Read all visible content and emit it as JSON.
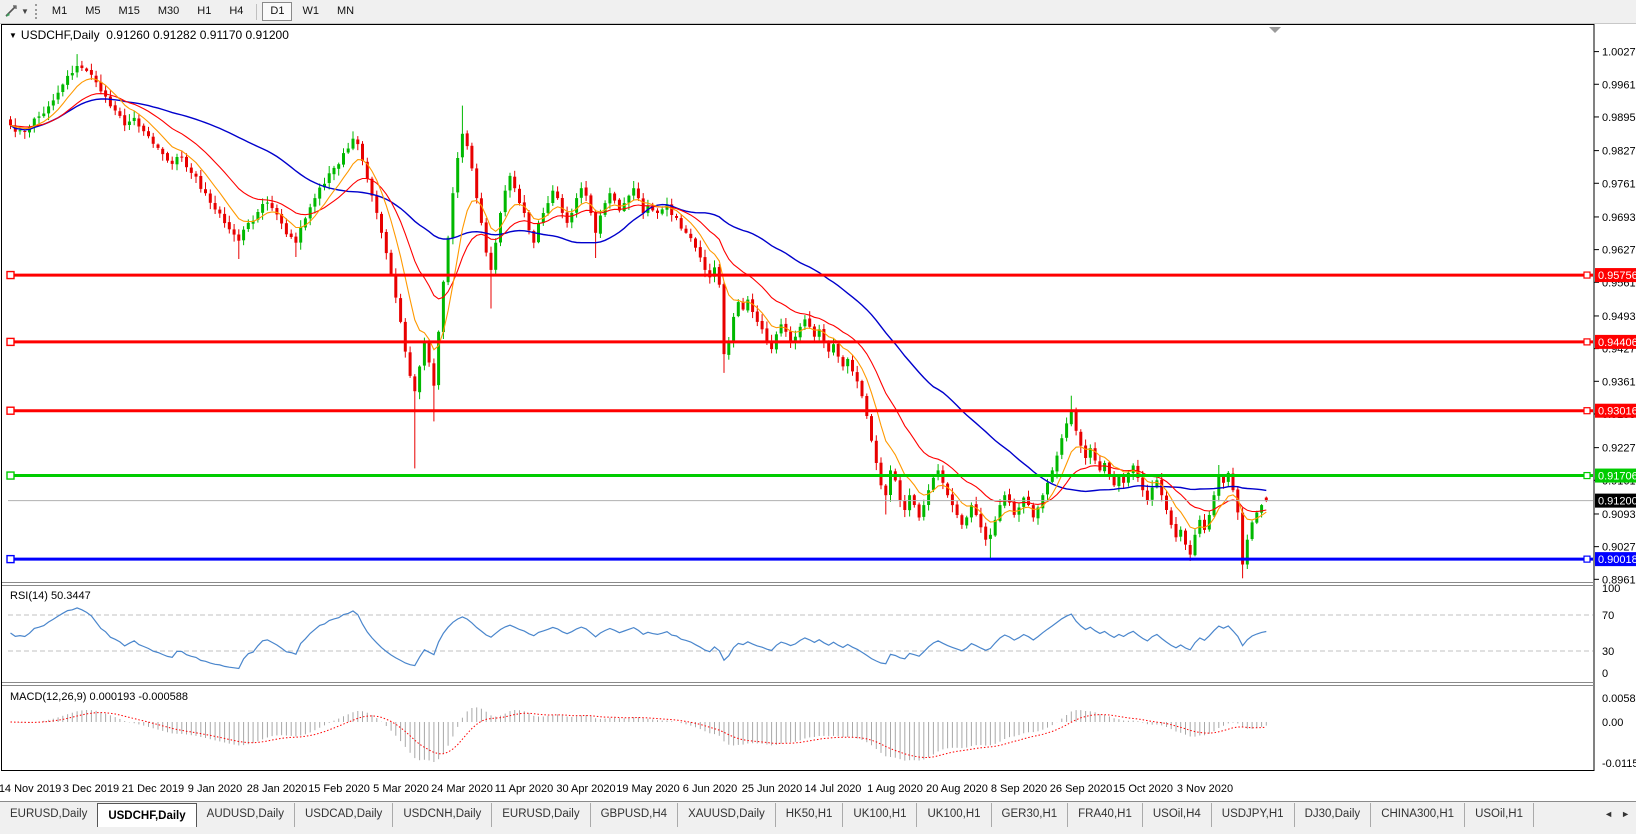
{
  "toolbar": {
    "chart_tool_icon": "line-studies-icon",
    "dropdown_icon": "chevron-down-icon",
    "timeframes": [
      "M1",
      "M5",
      "M15",
      "M30",
      "H1",
      "H4",
      "D1",
      "W1",
      "MN"
    ],
    "active": "D1"
  },
  "chart": {
    "title_symbol": "USDCHF,Daily",
    "title_ohlc": "0.91260 0.91282 0.91170 0.91200",
    "current_price_label": "0.91200",
    "current_price": 0.912,
    "levels": [
      {
        "price": 0.95756,
        "label": "0.95756",
        "color": "#ff0000"
      },
      {
        "price": 0.94406,
        "label": "0.94406",
        "color": "#ff0000"
      },
      {
        "price": 0.93016,
        "label": "0.93016",
        "color": "#ff0000"
      },
      {
        "price": 0.91706,
        "label": "0.91706",
        "color": "#00cc00"
      },
      {
        "price": 0.90018,
        "label": "0.90018",
        "color": "#0000ff"
      }
    ],
    "price_axis_ticks": [
      "1.00270",
      "0.99610",
      "0.98950",
      "0.98270",
      "0.97610",
      "0.96930",
      "0.96270",
      "0.95610",
      "0.94930",
      "0.94270",
      "0.93610",
      "0.92950",
      "0.92270",
      "0.91610",
      "0.90930",
      "0.90270",
      "0.89610"
    ],
    "date_ticks": [
      "14 Nov 2019",
      "3 Dec 2019",
      "21 Dec 2019",
      "9 Jan 2020",
      "28 Jan 2020",
      "15 Feb 2020",
      "5 Mar 2020",
      "24 Mar 2020",
      "11 Apr 2020",
      "30 Apr 2020",
      "19 May 2020",
      "6 Jun 2020",
      "25 Jun 2020",
      "14 Jul 2020",
      "1 Aug 2020",
      "20 Aug 2020",
      "8 Sep 2020",
      "26 Sep 2020",
      "15 Oct 2020",
      "3 Nov 2020"
    ],
    "colors": {
      "bull": "#00b800",
      "bear": "#e80000",
      "ma_fast": "#ff9900",
      "ma_mid": "#ff0000",
      "ma_slow": "#0000cc",
      "price_line": "#b0b0b0",
      "price_box": "#000000",
      "rsi_line": "#4a86cc",
      "macd_hist": "#a8a8a8",
      "macd_signal": "#ff0000",
      "level_dash": "#c0c0c0",
      "border": "#000000"
    }
  },
  "rsi": {
    "label": "RSI(14) 50.3447",
    "period": 14,
    "value": 50.3447,
    "axis_labels": [
      "100",
      "70",
      "30",
      "0"
    ],
    "guide_levels": [
      70,
      30
    ]
  },
  "macd": {
    "label": "MACD(12,26,9) 0.000193 -0.000588",
    "value": 0.000193,
    "signal": -0.000588,
    "axis_labels": [
      "0.005818",
      "0.00",
      "-0.01151"
    ]
  },
  "tabs": {
    "items": [
      "EURUSD,Daily",
      "USDCHF,Daily",
      "AUDUSD,Daily",
      "USDCAD,Daily",
      "USDCNH,Daily",
      "EURUSD,Daily",
      "GBPUSD,H4",
      "XAUUSD,Daily",
      "HK50,H1",
      "UK100,H1",
      "UK100,H1",
      "GER30,H1",
      "FRA40,H1",
      "USOil,H4",
      "USDJPY,H1",
      "DJ30,Daily",
      "CHINA300,H1",
      "USOil,H1"
    ],
    "active_index": 1,
    "scroll_left": "◄",
    "scroll_right": "►"
  },
  "chart_data": {
    "type": "candlestick",
    "symbol": "USDCHF",
    "timeframe": "Daily",
    "bar_count": 265,
    "visible_price_range": [
      0.8961,
      1.0027
    ],
    "last_bar": {
      "open": 0.9126,
      "high": 0.91282,
      "low": 0.9117,
      "close": 0.912
    },
    "moving_averages": [
      {
        "name": "fast",
        "type": "ema",
        "period": 8,
        "color": "#ff9900"
      },
      {
        "name": "mid",
        "type": "ema",
        "period": 20,
        "color": "#ff0000"
      },
      {
        "name": "slow",
        "type": "sma",
        "period": 45,
        "color": "#0000cc"
      }
    ],
    "close_anchors": [
      [
        0,
        0.9878
      ],
      [
        2,
        0.9868
      ],
      [
        4,
        0.9875
      ],
      [
        7,
        0.9902
      ],
      [
        10,
        0.9944
      ],
      [
        12,
        0.9978
      ],
      [
        14,
        0.9998
      ],
      [
        16,
        0.9988
      ],
      [
        18,
        0.9965
      ],
      [
        20,
        0.9936
      ],
      [
        22,
        0.9908
      ],
      [
        24,
        0.9878
      ],
      [
        26,
        0.9893
      ],
      [
        29,
        0.9856
      ],
      [
        32,
        0.982
      ],
      [
        34,
        0.98
      ],
      [
        36,
        0.9813
      ],
      [
        38,
        0.9782
      ],
      [
        41,
        0.9741
      ],
      [
        44,
        0.97
      ],
      [
        46,
        0.9668
      ],
      [
        48,
        0.9645
      ],
      [
        50,
        0.9681
      ],
      [
        52,
        0.9703
      ],
      [
        54,
        0.9722
      ],
      [
        56,
        0.9698
      ],
      [
        58,
        0.9658
      ],
      [
        60,
        0.9641
      ],
      [
        62,
        0.969
      ],
      [
        64,
        0.9731
      ],
      [
        66,
        0.976
      ],
      [
        68,
        0.9792
      ],
      [
        70,
        0.9822
      ],
      [
        72,
        0.9851
      ],
      [
        73,
        0.984
      ],
      [
        74,
        0.9806
      ],
      [
        75,
        0.977
      ],
      [
        76,
        0.9736
      ],
      [
        77,
        0.9701
      ],
      [
        78,
        0.9661
      ],
      [
        79,
        0.962
      ],
      [
        80,
        0.9576
      ],
      [
        81,
        0.953
      ],
      [
        82,
        0.9481
      ],
      [
        83,
        0.9421
      ],
      [
        84,
        0.9372
      ],
      [
        85,
        0.9341
      ],
      [
        86,
        0.9391
      ],
      [
        87,
        0.9441
      ],
      [
        88,
        0.9399
      ],
      [
        89,
        0.9352
      ],
      [
        90,
        0.9461
      ],
      [
        91,
        0.9562
      ],
      [
        92,
        0.9651
      ],
      [
        93,
        0.9741
      ],
      [
        94,
        0.9812
      ],
      [
        95,
        0.9861
      ],
      [
        96,
        0.9836
      ],
      [
        97,
        0.9791
      ],
      [
        98,
        0.9731
      ],
      [
        99,
        0.9681
      ],
      [
        100,
        0.9621
      ],
      [
        101,
        0.9586
      ],
      [
        102,
        0.9641
      ],
      [
        103,
        0.9701
      ],
      [
        104,
        0.9746
      ],
      [
        105,
        0.9776
      ],
      [
        106,
        0.9751
      ],
      [
        107,
        0.9721
      ],
      [
        108,
        0.9701
      ],
      [
        109,
        0.9666
      ],
      [
        110,
        0.9641
      ],
      [
        111,
        0.9681
      ],
      [
        112,
        0.9701
      ],
      [
        113,
        0.9721
      ],
      [
        114,
        0.9746
      ],
      [
        115,
        0.9731
      ],
      [
        116,
        0.9701
      ],
      [
        117,
        0.9681
      ],
      [
        118,
        0.9701
      ],
      [
        119,
        0.9731
      ],
      [
        120,
        0.9751
      ],
      [
        121,
        0.9736
      ],
      [
        122,
        0.9701
      ],
      [
        123,
        0.9661
      ],
      [
        124,
        0.9696
      ],
      [
        125,
        0.9721
      ],
      [
        126,
        0.9741
      ],
      [
        127,
        0.9726
      ],
      [
        128,
        0.9706
      ],
      [
        129,
        0.9721
      ],
      [
        130,
        0.9736
      ],
      [
        131,
        0.9751
      ],
      [
        132,
        0.9731
      ],
      [
        133,
        0.9701
      ],
      [
        134,
        0.9716
      ],
      [
        136,
        0.9701
      ],
      [
        138,
        0.9718
      ],
      [
        140,
        0.9691
      ],
      [
        142,
        0.9661
      ],
      [
        144,
        0.9631
      ],
      [
        145,
        0.9611
      ],
      [
        146,
        0.9586
      ],
      [
        147,
        0.9571
      ],
      [
        148,
        0.9591
      ],
      [
        149,
        0.9556
      ],
      [
        150,
        0.9416
      ],
      [
        151,
        0.9441
      ],
      [
        152,
        0.9491
      ],
      [
        153,
        0.9521
      ],
      [
        154,
        0.9506
      ],
      [
        155,
        0.9526
      ],
      [
        156,
        0.9501
      ],
      [
        157,
        0.9481
      ],
      [
        158,
        0.9466
      ],
      [
        159,
        0.9441
      ],
      [
        160,
        0.9426
      ],
      [
        161,
        0.9456
      ],
      [
        162,
        0.9476
      ],
      [
        163,
        0.9461
      ],
      [
        164,
        0.9441
      ],
      [
        165,
        0.9451
      ],
      [
        166,
        0.9471
      ],
      [
        167,
        0.9486
      ],
      [
        168,
        0.9471
      ],
      [
        169,
        0.9451
      ],
      [
        170,
        0.9466
      ],
      [
        171,
        0.9441
      ],
      [
        172,
        0.9421
      ],
      [
        173,
        0.9436
      ],
      [
        174,
        0.9411
      ],
      [
        175,
        0.9391
      ],
      [
        176,
        0.9406
      ],
      [
        177,
        0.9381
      ],
      [
        178,
        0.9361
      ],
      [
        179,
        0.9331
      ],
      [
        180,
        0.9291
      ],
      [
        181,
        0.9241
      ],
      [
        182,
        0.9196
      ],
      [
        183,
        0.9151
      ],
      [
        184,
        0.9131
      ],
      [
        185,
        0.9181
      ],
      [
        186,
        0.9161
      ],
      [
        187,
        0.9121
      ],
      [
        188,
        0.9101
      ],
      [
        189,
        0.9131
      ],
      [
        190,
        0.9111
      ],
      [
        191,
        0.9086
      ],
      [
        192,
        0.9111
      ],
      [
        193,
        0.9141
      ],
      [
        194,
        0.9166
      ],
      [
        195,
        0.9181
      ],
      [
        196,
        0.9156
      ],
      [
        197,
        0.9131
      ],
      [
        198,
        0.9111
      ],
      [
        199,
        0.9091
      ],
      [
        200,
        0.9071
      ],
      [
        201,
        0.9086
      ],
      [
        202,
        0.9111
      ],
      [
        203,
        0.9091
      ],
      [
        204,
        0.9066
      ],
      [
        205,
        0.9041
      ],
      [
        206,
        0.9051
      ],
      [
        207,
        0.9081
      ],
      [
        208,
        0.9111
      ],
      [
        209,
        0.9131
      ],
      [
        210,
        0.9116
      ],
      [
        211,
        0.9091
      ],
      [
        212,
        0.9106
      ],
      [
        213,
        0.9126
      ],
      [
        214,
        0.9111
      ],
      [
        215,
        0.9086
      ],
      [
        216,
        0.9106
      ],
      [
        217,
        0.9131
      ],
      [
        218,
        0.9156
      ],
      [
        219,
        0.9181
      ],
      [
        220,
        0.9211
      ],
      [
        221,
        0.9246
      ],
      [
        222,
        0.9276
      ],
      [
        223,
        0.9301
      ],
      [
        224,
        0.9261
      ],
      [
        225,
        0.9231
      ],
      [
        226,
        0.9206
      ],
      [
        227,
        0.9226
      ],
      [
        228,
        0.9201
      ],
      [
        229,
        0.9181
      ],
      [
        230,
        0.9196
      ],
      [
        231,
        0.9171
      ],
      [
        232,
        0.9151
      ],
      [
        233,
        0.9171
      ],
      [
        234,
        0.9156
      ],
      [
        235,
        0.9176
      ],
      [
        236,
        0.9191
      ],
      [
        237,
        0.9166
      ],
      [
        238,
        0.9141
      ],
      [
        239,
        0.9121
      ],
      [
        240,
        0.9146
      ],
      [
        241,
        0.9161
      ],
      [
        242,
        0.9131
      ],
      [
        243,
        0.9101
      ],
      [
        244,
        0.9071
      ],
      [
        245,
        0.9046
      ],
      [
        246,
        0.9061
      ],
      [
        247,
        0.9031
      ],
      [
        248,
        0.9011
      ],
      [
        249,
        0.9051
      ],
      [
        250,
        0.9081
      ],
      [
        251,
        0.9061
      ],
      [
        252,
        0.9091
      ],
      [
        253,
        0.9131
      ],
      [
        254,
        0.9171
      ],
      [
        255,
        0.9156
      ],
      [
        256,
        0.9176
      ],
      [
        257,
        0.9141
      ],
      [
        258,
        0.9096
      ],
      [
        259,
        0.8991
      ],
      [
        260,
        0.9041
      ],
      [
        261,
        0.9076
      ],
      [
        262,
        0.9096
      ],
      [
        263,
        0.9111
      ],
      [
        264,
        0.912
      ]
    ],
    "wick_overrides": {
      "14": {
        "high": 1.0022
      },
      "48": {
        "low": 0.9608
      },
      "60": {
        "low": 0.9612
      },
      "85": {
        "low": 0.9185
      },
      "89": {
        "low": 0.928
      },
      "95": {
        "high": 0.9918
      },
      "101": {
        "low": 0.9508
      },
      "123": {
        "low": 0.961
      },
      "150": {
        "low": 0.9378
      },
      "184": {
        "low": 0.9092
      },
      "206": {
        "low": 0.9002
      },
      "223": {
        "high": 0.9332
      },
      "248": {
        "low": 0.8998
      },
      "254": {
        "high": 0.9192
      },
      "259": {
        "low": 0.8963
      }
    }
  }
}
